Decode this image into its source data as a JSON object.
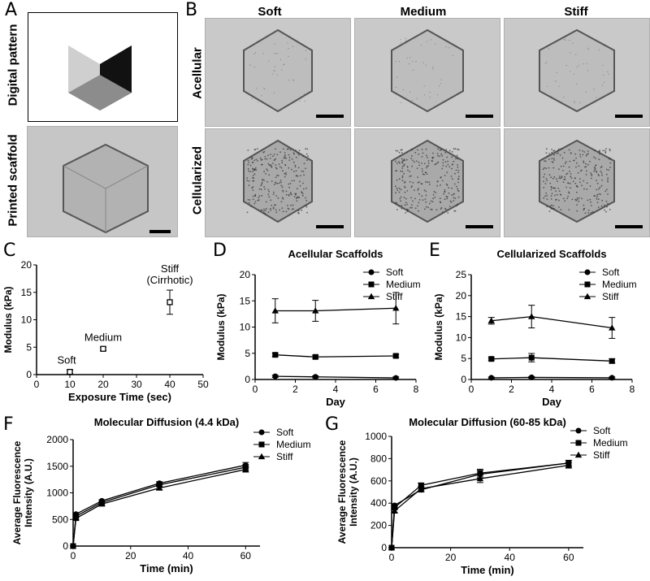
{
  "panel_letters": {
    "a": "A",
    "b": "B",
    "c": "C",
    "d": "D",
    "e": "E",
    "f": "F",
    "g": "G"
  },
  "panel_a": {
    "row_labels": {
      "pattern": "Digital pattern",
      "scaffold": "Printed scaffold"
    }
  },
  "panel_b": {
    "columns": [
      "Soft",
      "Medium",
      "Stiff"
    ],
    "rows": [
      "Acellular",
      "Cellularized"
    ]
  },
  "chart_data": [
    {
      "id": "C",
      "type": "scatter",
      "title": "",
      "xlabel": "Exposure Time (sec)",
      "ylabel": "Modulus (kPa)",
      "xlim": [
        0,
        50
      ],
      "ylim": [
        0,
        20
      ],
      "xticks": [
        "0",
        "10",
        "20",
        "30",
        "40",
        "50"
      ],
      "yticks": [
        "0",
        "5",
        "10",
        "15",
        "20"
      ],
      "points": [
        {
          "x": 10,
          "y": 0.5,
          "err": 0.3,
          "label": "Soft"
        },
        {
          "x": 20,
          "y": 4.7,
          "err": 0.3,
          "label": "Medium"
        },
        {
          "x": 40,
          "y": 13.2,
          "err": 2.2,
          "label": "Stiff\n(Cirrhotic)"
        }
      ]
    },
    {
      "id": "D",
      "type": "line",
      "title": "Acellular Scaffolds",
      "xlabel": "Day",
      "ylabel": "Modulus (kPa)",
      "xlim": [
        0,
        8
      ],
      "ylim": [
        0,
        20
      ],
      "xticks": [
        "0",
        "2",
        "4",
        "6",
        "8"
      ],
      "yticks": [
        "0",
        "5",
        "10",
        "15",
        "20"
      ],
      "legend": "top-right",
      "x": [
        1,
        3,
        7
      ],
      "series": [
        {
          "name": "Soft",
          "marker": "circle",
          "values": [
            0.6,
            0.5,
            0.3
          ],
          "err": [
            0.2,
            0.2,
            0.2
          ]
        },
        {
          "name": "Medium",
          "marker": "square",
          "values": [
            4.7,
            4.3,
            4.5
          ],
          "err": [
            0.3,
            0.3,
            0.3
          ]
        },
        {
          "name": "Stiff",
          "marker": "triangle",
          "values": [
            13.1,
            13.1,
            13.6
          ],
          "err": [
            2.3,
            2.0,
            3.0
          ]
        }
      ]
    },
    {
      "id": "E",
      "type": "line",
      "title": "Cellularized Scaffolds",
      "xlabel": "Day",
      "ylabel": "Modulus (kPa)",
      "xlim": [
        0,
        8
      ],
      "ylim": [
        0,
        25
      ],
      "xticks": [
        "0",
        "2",
        "4",
        "6",
        "8"
      ],
      "yticks": [
        "0",
        "5",
        "10",
        "15",
        "20",
        "25"
      ],
      "legend": "top-right",
      "x": [
        1,
        3,
        7
      ],
      "series": [
        {
          "name": "Soft",
          "marker": "circle",
          "values": [
            0.4,
            0.5,
            0.4
          ],
          "err": [
            0.2,
            0.2,
            0.2
          ]
        },
        {
          "name": "Medium",
          "marker": "square",
          "values": [
            4.9,
            5.2,
            4.4
          ],
          "err": [
            0.3,
            1.0,
            0.5
          ]
        },
        {
          "name": "Stiff",
          "marker": "triangle",
          "values": [
            14.0,
            15.0,
            12.3
          ],
          "err": [
            0.8,
            2.7,
            2.5
          ]
        }
      ]
    },
    {
      "id": "F",
      "type": "line",
      "title": "Molecular Diffusion (4.4 kDa)",
      "xlabel": "Time (min)",
      "ylabel": "Average Fluorescence\nIntensity (A.U.)",
      "xlim": [
        0,
        65
      ],
      "ylim": [
        0,
        2000
      ],
      "xticks": [
        "0",
        "20",
        "40",
        "60"
      ],
      "yticks": [
        "0",
        "500",
        "1000",
        "1500",
        "2000"
      ],
      "legend": "top-right",
      "x": [
        0,
        1,
        10,
        30,
        60
      ],
      "series": [
        {
          "name": "Soft",
          "marker": "circle",
          "values": [
            0,
            600,
            850,
            1180,
            1520
          ],
          "err": [
            0,
            20,
            20,
            30,
            50
          ]
        },
        {
          "name": "Medium",
          "marker": "square",
          "values": [
            0,
            560,
            820,
            1150,
            1480
          ],
          "err": [
            0,
            20,
            20,
            30,
            50
          ]
        },
        {
          "name": "Stiff",
          "marker": "triangle",
          "values": [
            0,
            520,
            790,
            1090,
            1440
          ],
          "err": [
            0,
            20,
            20,
            30,
            50
          ]
        }
      ]
    },
    {
      "id": "G",
      "type": "line",
      "title": "Molecular Diffusion (60-85 kDa)",
      "xlabel": "Time (min)",
      "ylabel": "Average Fluorescence\nIntensity (A.U.)",
      "xlim": [
        0,
        65
      ],
      "ylim": [
        0,
        1000
      ],
      "xticks": [
        "0",
        "20",
        "40",
        "60"
      ],
      "yticks": [
        "0",
        "200",
        "400",
        "600",
        "800",
        "1000"
      ],
      "legend": "top-right",
      "x": [
        0,
        1,
        10,
        30,
        60
      ],
      "series": [
        {
          "name": "Soft",
          "marker": "circle",
          "values": [
            0,
            380,
            520,
            660,
            760
          ],
          "err": [
            0,
            15,
            20,
            35,
            25
          ]
        },
        {
          "name": "Medium",
          "marker": "square",
          "values": [
            0,
            360,
            560,
            670,
            760
          ],
          "err": [
            0,
            15,
            20,
            35,
            25
          ]
        },
        {
          "name": "Stiff",
          "marker": "triangle",
          "values": [
            0,
            330,
            530,
            620,
            740
          ],
          "err": [
            0,
            15,
            20,
            35,
            25
          ]
        }
      ]
    }
  ]
}
